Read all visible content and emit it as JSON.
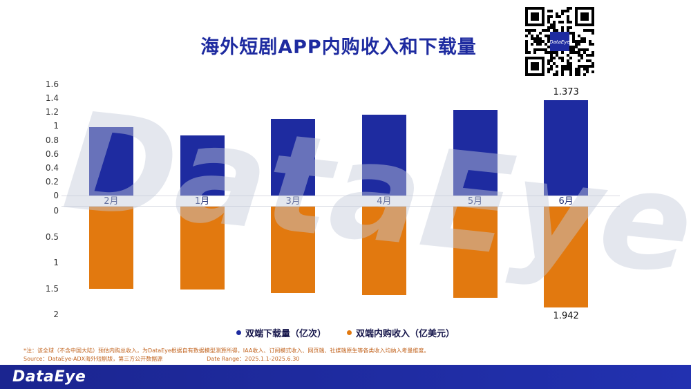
{
  "page": {
    "title": "海外短剧APP内购收入和下载量"
  },
  "watermark": "DataEye",
  "qr": {
    "label": "DataEye"
  },
  "colors": {
    "primary_blue": "#1E2BA0",
    "orange": "#E2790F",
    "footnote_orange": "#C2641F"
  },
  "chart_data": {
    "type": "bar",
    "orientation": "diverging-vertical",
    "title": "海外短剧APP内购收入和下载量",
    "grid": false,
    "legend_position": "bottom",
    "categories": [
      "2月",
      "1月",
      "3月",
      "4月",
      "5月",
      "6月"
    ],
    "series": [
      {
        "name": "双端下载量（亿次）",
        "color": "#1E2BA0",
        "direction": "up",
        "axis_range": [
          0,
          1.6
        ],
        "axis_ticks": [
          "1.6",
          "1.4",
          "1.2",
          "1",
          "0.8",
          "0.6",
          "0.4",
          "0.2",
          "0"
        ],
        "values": [
          0.98,
          0.86,
          1.1,
          1.16,
          1.23,
          1.373
        ],
        "point_labels": [
          "",
          "",
          "",
          "",
          "",
          "1.373"
        ]
      },
      {
        "name": "双端内购收入（亿美元）",
        "color": "#E2790F",
        "direction": "down",
        "axis_range": [
          0,
          2
        ],
        "axis_ticks": [
          "0",
          "0.5",
          "1",
          "1.5",
          "2"
        ],
        "values": [
          1.58,
          1.6,
          1.66,
          1.7,
          1.76,
          1.942
        ],
        "point_labels": [
          "",
          "",
          "",
          "",
          "",
          "1.942"
        ]
      }
    ]
  },
  "legend": {
    "items": [
      {
        "label": "双端下载量（亿次）",
        "color": "#1E2BA0"
      },
      {
        "label": "双端内购收入（亿美元）",
        "color": "#E2790F"
      }
    ]
  },
  "footnotes": {
    "note": "*注：该全球（不含中国大陆）预估内购总收入，为DataEye根据自有数据模型测算所得，IAA收入、订阅模式收入、网页端、社媒端原生等各类收入均纳入考量维度。",
    "source": "Source：DataEye-ADX海外短剧版，第三方公开数据源",
    "date_range": "Date Range：2025.1.1-2025.6.30"
  },
  "footer": {
    "logo": "DataEye"
  }
}
